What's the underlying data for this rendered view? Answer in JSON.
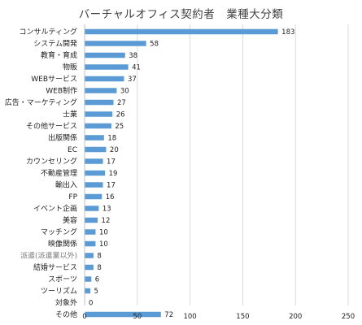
{
  "chart_data": {
    "type": "bar",
    "orientation": "horizontal",
    "title": "バーチャルオフィス契約者　業種大分類",
    "categories": [
      "コンサルティング",
      "システム開発",
      "教育・育成",
      "物販",
      "WEBサービス",
      "WEB制作",
      "広告・マーケティング",
      "士業",
      "その他サービス",
      "出版関係",
      "EC",
      "カウンセリング",
      "不動産管理",
      "輸出入",
      "FP",
      "イベント企画",
      "美容",
      "マッチング",
      "映像関係",
      "派遣(派遣業以外)",
      "結婚サービス",
      "スポーツ",
      "ツーリズム",
      "対象外",
      "その他"
    ],
    "values": [
      183,
      58,
      38,
      41,
      37,
      30,
      27,
      26,
      25,
      18,
      20,
      17,
      19,
      17,
      16,
      13,
      12,
      10,
      10,
      8,
      8,
      6,
      5,
      0,
      72
    ],
    "xlim": [
      0,
      250
    ],
    "xticks": [
      0,
      50,
      100,
      150,
      200,
      250
    ],
    "grid": true,
    "legend": "none",
    "colors": {
      "bar": "#5b9bd5",
      "grid": "#d9d9d9",
      "text": "#222222",
      "muted_label": "#7a7a7a"
    }
  }
}
